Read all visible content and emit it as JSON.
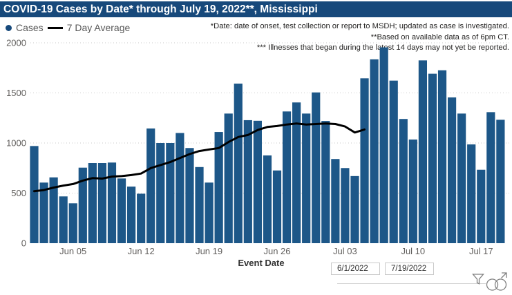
{
  "title": "COVID-19 Cases by Date* through July 19, 2022**, Mississippi",
  "legend": {
    "cases_label": "Cases",
    "avg_label": "7 Day Average"
  },
  "annotations": [
    "*Date: date of onset, test collection or report to MSDH; updated as case is investigated.",
    "**Based on available data as of 6pm CT.",
    "*** Illnesses that began during the latest 14 days may not yet be reported."
  ],
  "slicer": {
    "start_date": "6/1/2022",
    "end_date": "7/19/2022"
  },
  "icons": {
    "filter": "filter-icon",
    "focus": "focus-mode-icon"
  },
  "colors": {
    "title_bg": "#17497B",
    "bar": "#1D5788",
    "avg_line": "#000000",
    "axis_text": "#605E5C",
    "annotation_text": "#252423",
    "gridline": "#C8C8C8",
    "icon_gray": "#7F7F7F"
  },
  "chart_data": {
    "type": "bar",
    "title": "COVID-19 Cases by Date* through July 19, 2022**, Mississippi",
    "xlabel": "Event Date",
    "ylabel": "",
    "ylim": [
      0,
      2000
    ],
    "yticks": [
      0,
      500,
      1000,
      1500,
      2000
    ],
    "grid": "dotted-horizontal",
    "legend_position": "top-left",
    "categories": [
      "Jun 01",
      "Jun 02",
      "Jun 03",
      "Jun 04",
      "Jun 05",
      "Jun 06",
      "Jun 07",
      "Jun 08",
      "Jun 09",
      "Jun 10",
      "Jun 11",
      "Jun 12",
      "Jun 13",
      "Jun 14",
      "Jun 15",
      "Jun 16",
      "Jun 17",
      "Jun 18",
      "Jun 19",
      "Jun 20",
      "Jun 21",
      "Jun 22",
      "Jun 23",
      "Jun 24",
      "Jun 25",
      "Jun 26",
      "Jun 27",
      "Jun 28",
      "Jun 29",
      "Jun 30",
      "Jul 01",
      "Jul 02",
      "Jul 03",
      "Jul 04",
      "Jul 05",
      "Jul 06",
      "Jul 07",
      "Jul 08",
      "Jul 09",
      "Jul 10",
      "Jul 11",
      "Jul 12",
      "Jul 13",
      "Jul 14",
      "Jul 15",
      "Jul 16",
      "Jul 17",
      "Jul 18",
      "Jul 19"
    ],
    "xticks": [
      {
        "label": "Jun 05",
        "index": 4
      },
      {
        "label": "Jun 12",
        "index": 11
      },
      {
        "label": "Jun 19",
        "index": 18
      },
      {
        "label": "Jun 26",
        "index": 25
      },
      {
        "label": "Jul 03",
        "index": 32
      },
      {
        "label": "Jul 10",
        "index": 39
      },
      {
        "label": "Jul 17",
        "index": 46
      }
    ],
    "series": [
      {
        "name": "Cases",
        "type": "bar",
        "values": [
          970,
          605,
          657,
          467,
          398,
          754,
          800,
          800,
          805,
          646,
          565,
          494,
          1145,
          1000,
          1000,
          1100,
          950,
          760,
          605,
          1110,
          1294,
          1593,
          1228,
          1222,
          876,
          726,
          1315,
          1405,
          1294,
          1505,
          1220,
          840,
          750,
          670,
          1646,
          1835,
          1955,
          1623,
          1240,
          1035,
          1825,
          1692,
          1726,
          1455,
          1294,
          986,
          733,
          1308,
          1232
        ]
      },
      {
        "name": "7 Day Average",
        "type": "line",
        "values": [
          519,
          530,
          555,
          575,
          590,
          625,
          650,
          645,
          665,
          670,
          680,
          695,
          750,
          780,
          810,
          850,
          890,
          920,
          935,
          950,
          1010,
          1060,
          1080,
          1130,
          1160,
          1170,
          1185,
          1195,
          1185,
          1190,
          1195,
          1190,
          1165,
          1105,
          1135
        ]
      }
    ]
  }
}
